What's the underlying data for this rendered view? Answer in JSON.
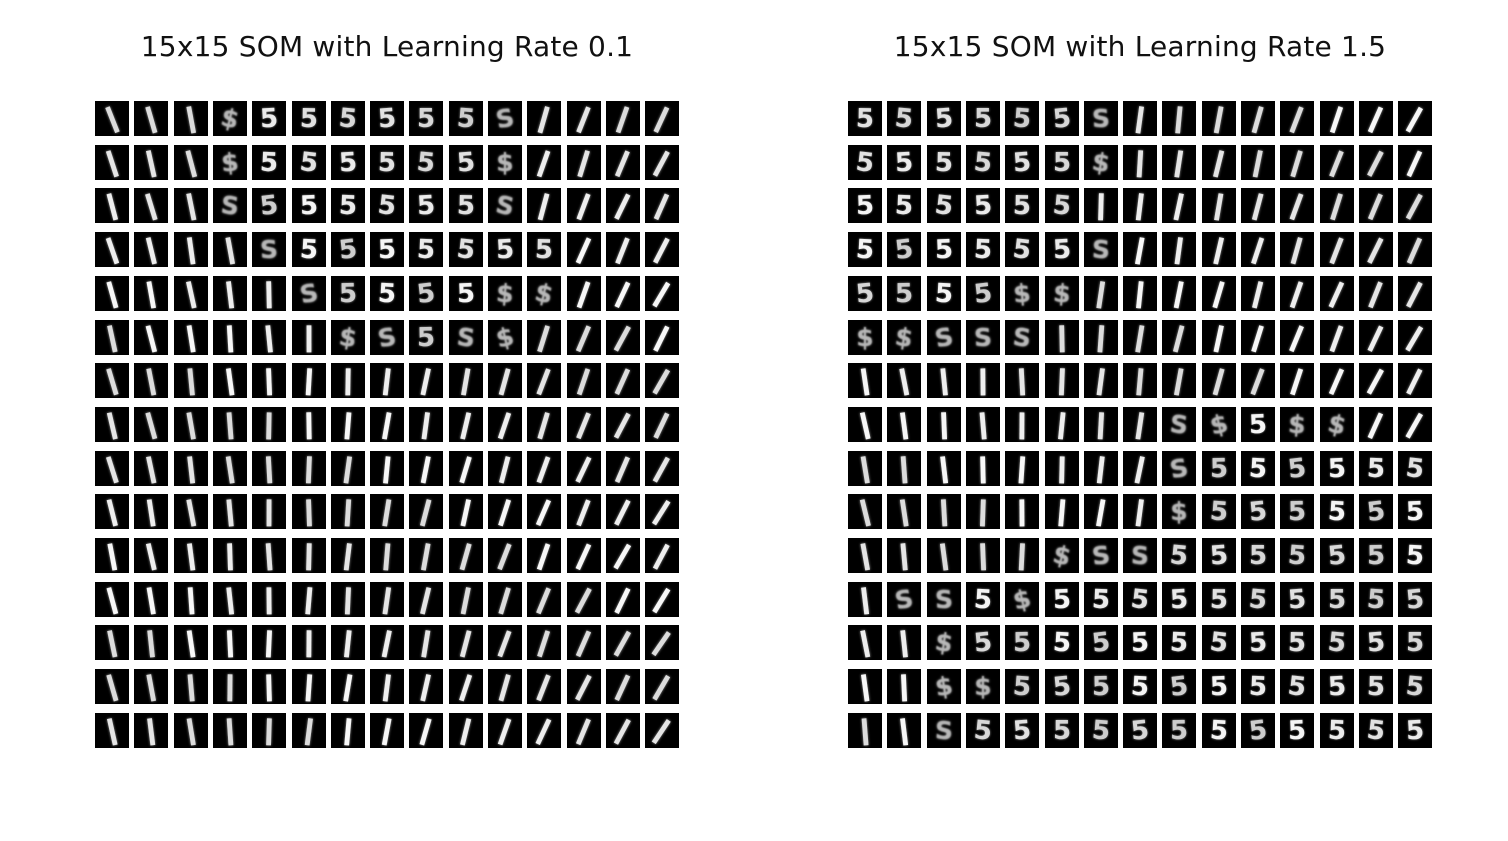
{
  "chart_data": [
    {
      "type": "heatmap",
      "title": "15x15 SOM with Learning Rate 0.1",
      "grid_size": [
        15,
        15
      ],
      "cell_content": "grayscale MNIST digit prototype",
      "prototypes": [
        "111B555555B1111",
        "111B555555B1111",
        "111B555555B1111",
        "1111B5555555111",
        "11111B5555BB111",
        "111111BB5BB1111",
        "111111111111111",
        "111111111111111",
        "111111111111111",
        "111111111111111",
        "111111111111111",
        "111111111111111",
        "111111111111111",
        "111111111111111",
        "111111111111111"
      ],
      "legend": {
        "1": "digit 1 prototype",
        "5": "digit 5 prototype",
        "B": "blended 1/5 prototype"
      }
    },
    {
      "type": "heatmap",
      "title": "15x15 SOM with Learning Rate 1.5",
      "grid_size": [
        15,
        15
      ],
      "cell_content": "grayscale MNIST digit prototype",
      "prototypes": [
        "555555B11111111",
        "555555B11111111",
        "555555111111111",
        "555555B11111111",
        "5555BB111111111",
        "BBBBB1111111111",
        "111111111111111",
        "11111111BB5BB11",
        "11111111B555555",
        "11111111B555555",
        "11111BBB5555555",
        "1BB5B5555555555",
        "11B555555555555",
        "11BB55555555555",
        "11B555555555555"
      ],
      "legend": {
        "1": "digit 1 prototype",
        "5": "digit 5 prototype",
        "B": "blended 1/5 prototype"
      }
    }
  ]
}
